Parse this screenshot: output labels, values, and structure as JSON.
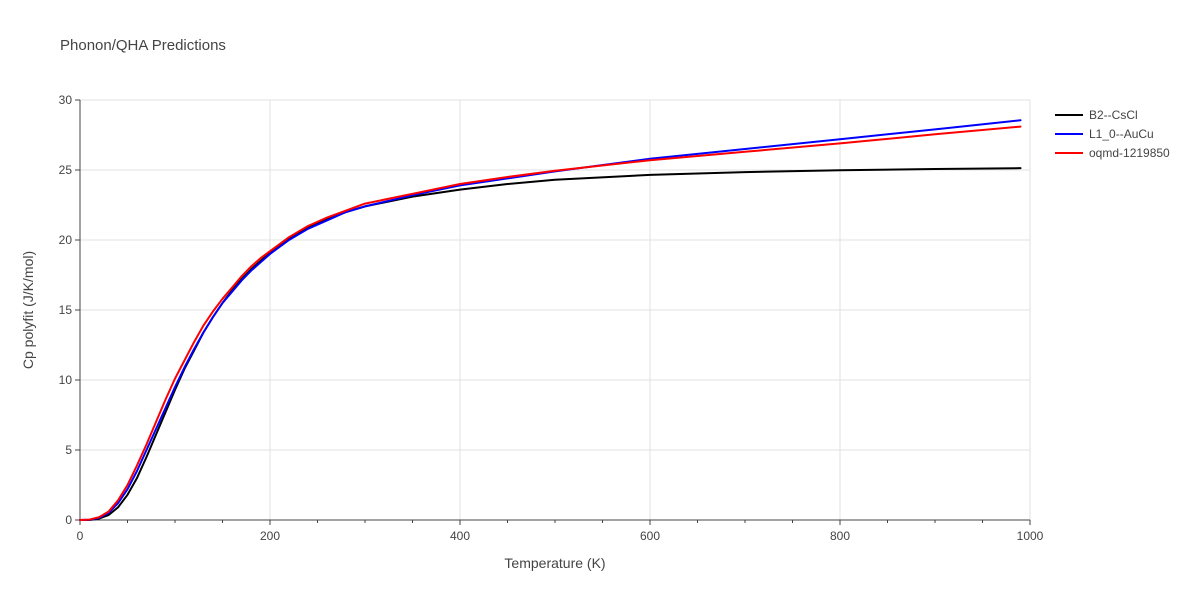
{
  "chart_data": {
    "type": "line",
    "title": "Phonon/QHA Predictions",
    "xlabel": "Temperature (K)",
    "ylabel": "Cp polyfit (J/K/mol)",
    "xlim": [
      0,
      1000
    ],
    "ylim": [
      0,
      30
    ],
    "xticks": [
      0,
      200,
      400,
      600,
      800,
      1000
    ],
    "yticks": [
      0,
      5,
      10,
      15,
      20,
      25,
      30
    ],
    "xtick_labels": [
      "0",
      "200",
      "400",
      "600",
      "800",
      "1000"
    ],
    "ytick_labels": [
      "0",
      "5",
      "10",
      "15",
      "20",
      "25",
      "30"
    ],
    "grid": true,
    "legend_position": "top-right",
    "series": [
      {
        "name": "B2--CsCl",
        "color": "#000000",
        "x": [
          0,
          10,
          20,
          30,
          40,
          50,
          60,
          70,
          80,
          90,
          100,
          110,
          120,
          130,
          140,
          150,
          160,
          170,
          180,
          190,
          200,
          220,
          240,
          260,
          280,
          300,
          350,
          400,
          450,
          500,
          600,
          700,
          800,
          900,
          990
        ],
        "y": [
          0,
          0,
          0.1,
          0.35,
          0.9,
          1.8,
          3.0,
          4.5,
          6.1,
          7.7,
          9.3,
          10.8,
          12.1,
          13.4,
          14.5,
          15.5,
          16.4,
          17.2,
          17.9,
          18.5,
          19.1,
          20.1,
          20.9,
          21.5,
          22.0,
          22.4,
          23.1,
          23.6,
          24.0,
          24.3,
          24.65,
          24.85,
          24.98,
          25.07,
          25.13
        ]
      },
      {
        "name": "L1_0--AuCu",
        "color": "#0000ff",
        "x": [
          0,
          10,
          20,
          30,
          40,
          50,
          60,
          70,
          80,
          90,
          100,
          110,
          120,
          130,
          140,
          150,
          160,
          170,
          180,
          190,
          200,
          220,
          240,
          260,
          280,
          300,
          350,
          400,
          450,
          500,
          600,
          700,
          800,
          900,
          990
        ],
        "y": [
          0,
          0.02,
          0.15,
          0.5,
          1.2,
          2.2,
          3.5,
          5.0,
          6.5,
          8.0,
          9.5,
          10.9,
          12.2,
          13.4,
          14.5,
          15.5,
          16.3,
          17.1,
          17.8,
          18.4,
          19.0,
          20.0,
          20.8,
          21.4,
          22.0,
          22.4,
          23.2,
          23.9,
          24.4,
          24.9,
          25.8,
          26.5,
          27.2,
          27.9,
          28.55
        ]
      },
      {
        "name": "oqmd-1219850",
        "color": "#ff0000",
        "x": [
          0,
          10,
          20,
          30,
          40,
          50,
          60,
          70,
          80,
          90,
          100,
          110,
          120,
          130,
          140,
          150,
          160,
          170,
          180,
          190,
          200,
          220,
          240,
          260,
          280,
          300,
          350,
          400,
          450,
          500,
          600,
          700,
          800,
          900,
          990
        ],
        "y": [
          0,
          0.03,
          0.2,
          0.6,
          1.4,
          2.5,
          3.9,
          5.4,
          7.0,
          8.6,
          10.1,
          11.4,
          12.7,
          13.9,
          14.9,
          15.8,
          16.6,
          17.4,
          18.1,
          18.7,
          19.2,
          20.2,
          21.0,
          21.6,
          22.1,
          22.6,
          23.3,
          24.0,
          24.5,
          24.95,
          25.7,
          26.3,
          26.9,
          27.55,
          28.1
        ]
      }
    ]
  }
}
